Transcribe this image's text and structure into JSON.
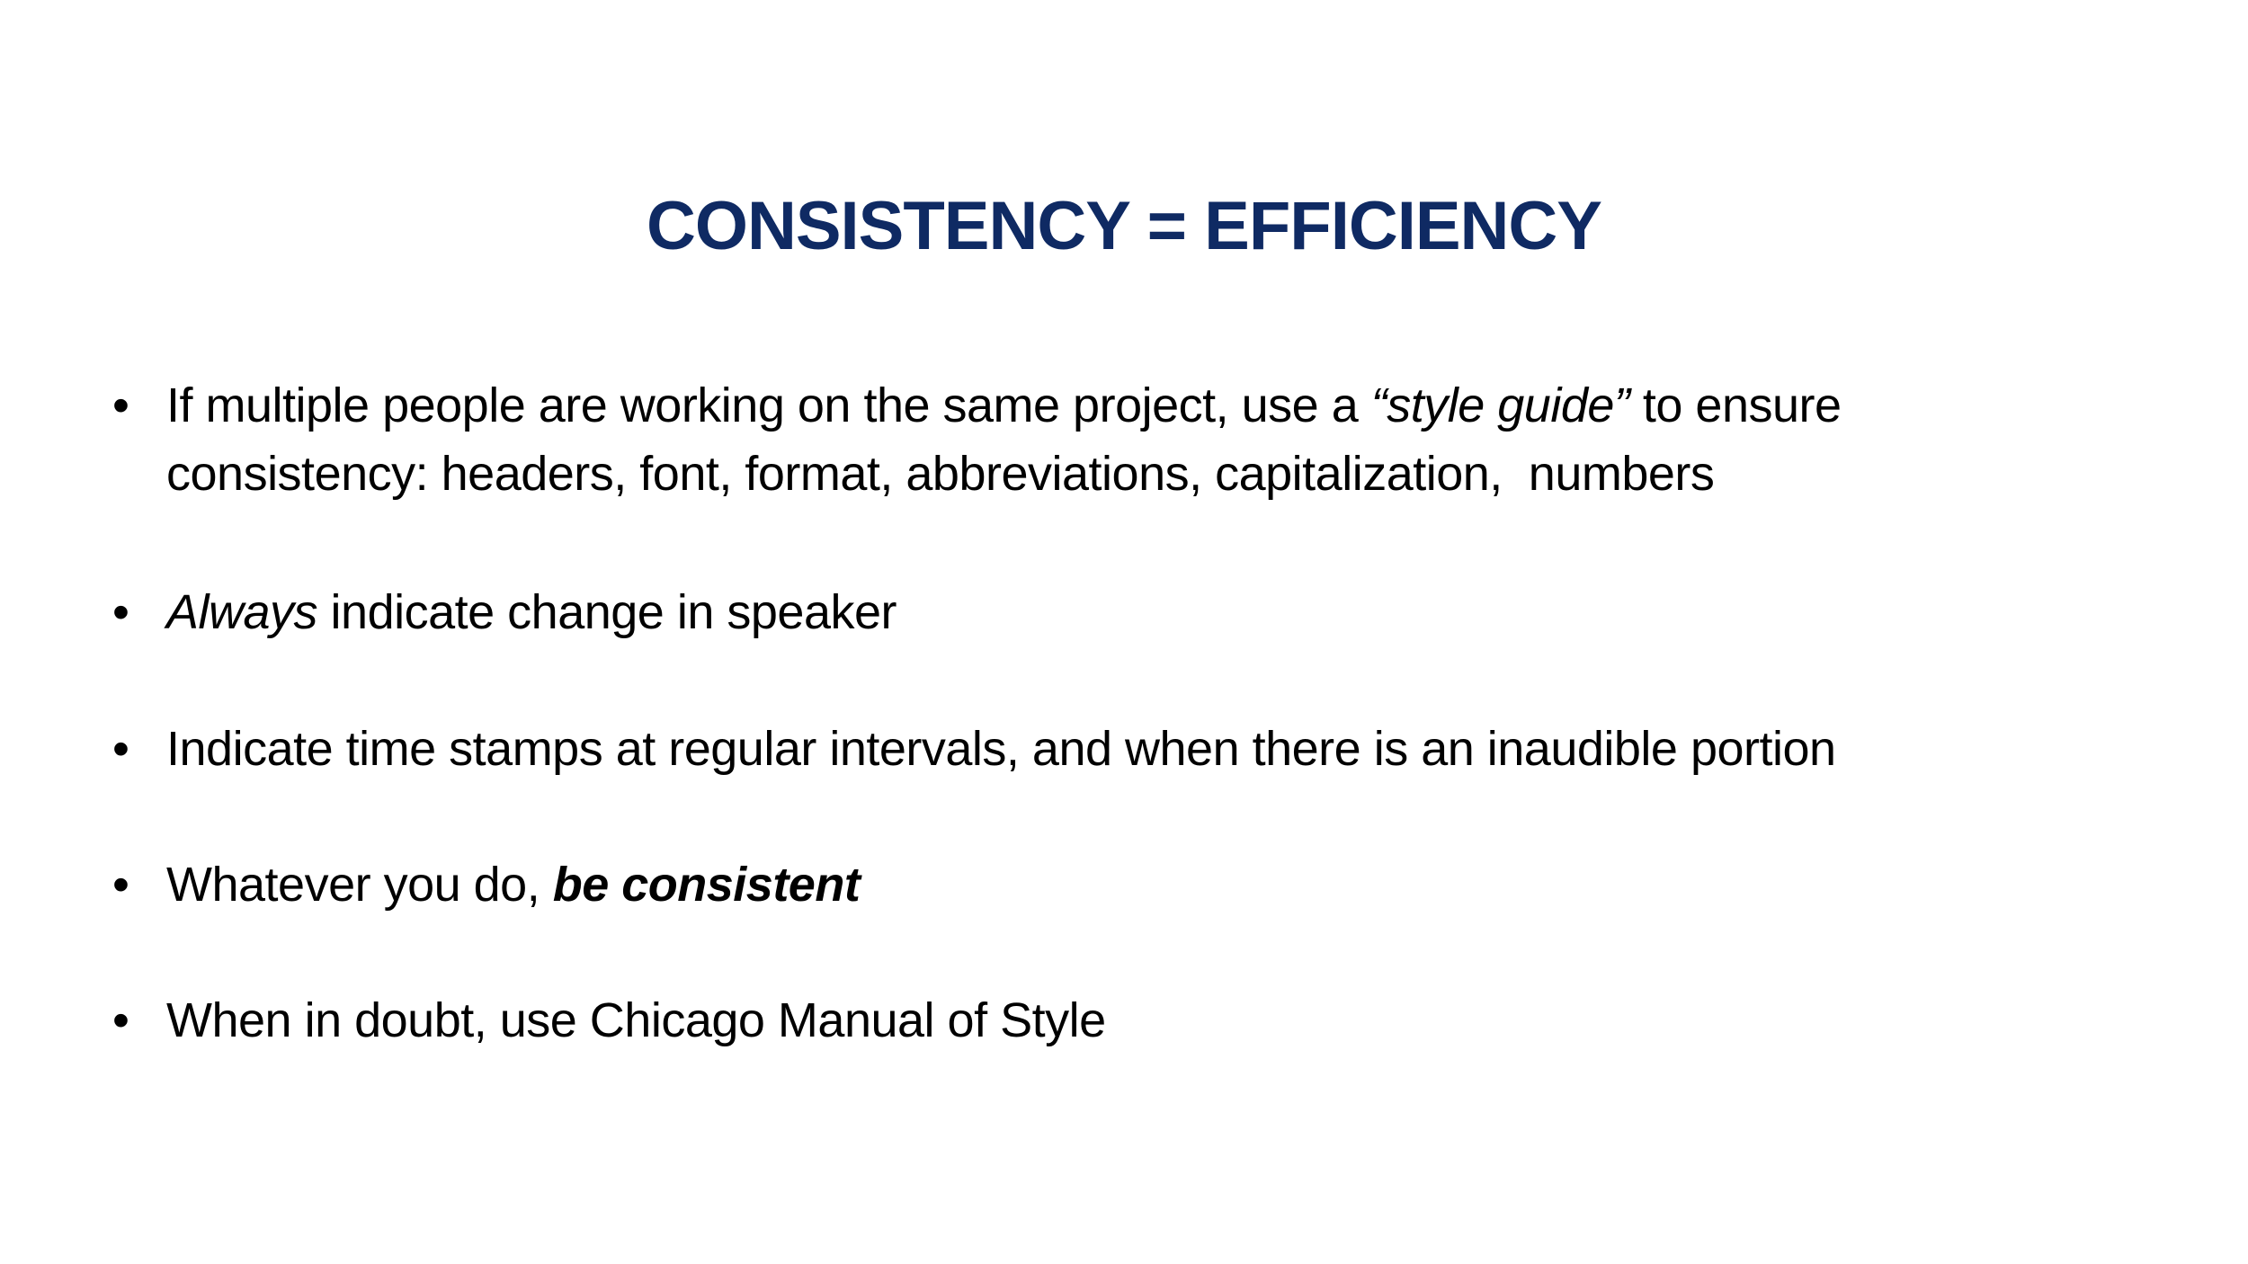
{
  "slide": {
    "title": "CONSISTENCY = EFFICIENCY",
    "bullet_symbol": "•",
    "bullets": [
      {
        "pre": "If multiple people are working on the same project, use a ",
        "emph": "“style guide”",
        "post": " to ensure",
        "line2": "consistency: headers, font, format, abbreviations, capitalization,  numbers"
      },
      {
        "emph": "Always",
        "post": " indicate change in speaker"
      },
      {
        "text": "Indicate time stamps at regular intervals, and when there is an inaudible portion"
      },
      {
        "pre": "Whatever you do, ",
        "strong_emph": "be consistent"
      },
      {
        "text": "When in doubt, use Chicago Manual of Style"
      }
    ],
    "colors": {
      "title": "#0f2a63",
      "body_text": "#000000",
      "background": "#ffffff"
    }
  }
}
